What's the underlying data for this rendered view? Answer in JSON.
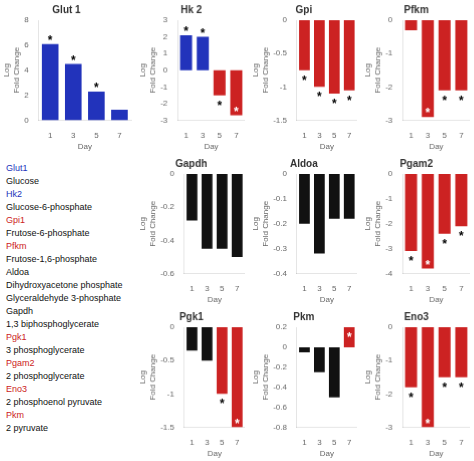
{
  "chart_data": [
    {
      "type": "bar",
      "title": "Glut 1",
      "categories": [
        "1",
        "3",
        "5",
        "7"
      ],
      "values": [
        6.1,
        4.5,
        2.3,
        0.85
      ],
      "colors": [
        "#2233bb",
        "#2233bb",
        "#2233bb",
        "#2233bb"
      ],
      "ylim": [
        0.0,
        8.0
      ],
      "yticks": [
        0.0,
        2.0,
        4.0,
        6.0,
        8.0
      ],
      "xlabel": "Day",
      "ylabel": "Log\nFold Change",
      "grid": false,
      "annotations": [
        {
          "text": "*",
          "category": "1"
        },
        {
          "text": "*",
          "category": "3"
        },
        {
          "text": "*",
          "category": "5"
        }
      ]
    },
    {
      "type": "bar",
      "title": "Hk 2",
      "categories": [
        "1",
        "3",
        "5",
        "7"
      ],
      "values": [
        2.1,
        2.0,
        -1.5,
        -2.7
      ],
      "colors": [
        "#2233bb",
        "#2233bb",
        "#cc2222",
        "#cc2222"
      ],
      "ylim": [
        -3.0,
        3.0
      ],
      "yticks": [
        -3.0,
        -2.0,
        -1.0,
        0.0,
        1.0,
        2.0,
        3.0
      ],
      "xlabel": "Day",
      "ylabel": "Log\nFold Change",
      "grid": false,
      "annotations": [
        {
          "text": "*",
          "category": "1"
        },
        {
          "text": "*",
          "category": "3"
        },
        {
          "text": "*",
          "category": "5"
        },
        {
          "text": "*",
          "category": "7"
        }
      ]
    },
    {
      "type": "bar",
      "title": "Gpi",
      "categories": [
        "1",
        "3",
        "5",
        "7"
      ],
      "values": [
        -0.75,
        -1.0,
        -1.1,
        -1.05
      ],
      "colors": [
        "#cc2222",
        "#cc2222",
        "#cc2222",
        "#cc2222"
      ],
      "ylim": [
        -1.5,
        0.0
      ],
      "yticks": [
        -1.5,
        -1.0,
        -0.5,
        0.0
      ],
      "xlabel": "Day",
      "ylabel": "Log\nFold Change",
      "grid": false,
      "annotations": [
        {
          "text": "*",
          "category": "1"
        },
        {
          "text": "*",
          "category": "3"
        },
        {
          "text": "*",
          "category": "5"
        },
        {
          "text": "*",
          "category": "7"
        }
      ]
    },
    {
      "type": "bar",
      "title": "Pfkm",
      "categories": [
        "1",
        "3",
        "5",
        "7"
      ],
      "values": [
        -0.3,
        -2.9,
        -2.1,
        -2.1
      ],
      "colors": [
        "#cc2222",
        "#cc2222",
        "#cc2222",
        "#cc2222"
      ],
      "ylim": [
        -3.0,
        0.0
      ],
      "yticks": [
        -3.0,
        -2.0,
        -1.0,
        0.0
      ],
      "xlabel": "Day",
      "ylabel": "Log\nFold Change",
      "grid": false,
      "annotations": [
        {
          "text": "*",
          "category": "3"
        },
        {
          "text": "*",
          "category": "5"
        },
        {
          "text": "*",
          "category": "7"
        }
      ]
    },
    {
      "type": "bar",
      "title": "Gapdh",
      "categories": [
        "1",
        "3",
        "5",
        "7"
      ],
      "values": [
        -0.28,
        -0.45,
        -0.45,
        -0.5
      ],
      "colors": [
        "#111111",
        "#111111",
        "#111111",
        "#111111"
      ],
      "ylim": [
        -0.6,
        0.0
      ],
      "yticks": [
        -0.6,
        -0.4,
        -0.2,
        0.0
      ],
      "xlabel": "Day",
      "ylabel": "Log\nFold Change",
      "grid": false,
      "annotations": []
    },
    {
      "type": "bar",
      "title": "Aldoa",
      "categories": [
        "1",
        "3",
        "5",
        "7"
      ],
      "values": [
        -0.2,
        -0.32,
        -0.18,
        -0.18
      ],
      "colors": [
        "#111111",
        "#111111",
        "#111111",
        "#111111"
      ],
      "ylim": [
        -0.4,
        0.0
      ],
      "yticks": [
        -0.4,
        -0.3,
        -0.2,
        -0.1,
        0.0
      ],
      "xlabel": "Day",
      "ylabel": "Log\nFold Change",
      "grid": false,
      "annotations": []
    },
    {
      "type": "bar",
      "title": "Pgam2",
      "categories": [
        "1",
        "3",
        "5",
        "7"
      ],
      "values": [
        -3.1,
        -3.8,
        -2.4,
        -2.1
      ],
      "colors": [
        "#cc2222",
        "#cc2222",
        "#cc2222",
        "#cc2222"
      ],
      "ylim": [
        -4.0,
        0.0
      ],
      "yticks": [
        -4.0,
        -3.0,
        -2.0,
        -1.0,
        0.0
      ],
      "xlabel": "Day",
      "ylabel": "Log\nFold Change",
      "grid": false,
      "annotations": [
        {
          "text": "*",
          "category": "1"
        },
        {
          "text": "*",
          "category": "3"
        },
        {
          "text": "*",
          "category": "5"
        },
        {
          "text": "*",
          "category": "7"
        }
      ]
    },
    {
      "type": "bar",
      "title": "Pgk1",
      "categories": [
        "1",
        "3",
        "5",
        "7"
      ],
      "values": [
        -0.35,
        -0.5,
        -1.0,
        -1.5
      ],
      "colors": [
        "#111111",
        "#111111",
        "#cc2222",
        "#cc2222"
      ],
      "ylim": [
        -1.5,
        0.0
      ],
      "yticks": [
        -1.5,
        -1.0,
        -0.5,
        0.0
      ],
      "xlabel": "Day",
      "ylabel": "Log\nFold Change",
      "grid": false,
      "annotations": [
        {
          "text": "*",
          "category": "5"
        },
        {
          "text": "*",
          "category": "7"
        }
      ]
    },
    {
      "type": "bar",
      "title": "Pkm",
      "categories": [
        "1",
        "3",
        "5",
        "7"
      ],
      "values": [
        -0.05,
        -0.25,
        -0.5,
        0.2
      ],
      "colors": [
        "#111111",
        "#111111",
        "#111111",
        "#cc2222"
      ],
      "ylim": [
        -0.8,
        0.2
      ],
      "yticks": [
        -0.8,
        -0.6,
        -0.4,
        -0.2,
        0.0,
        0.2
      ],
      "xlabel": "Day",
      "ylabel": "Log\nFold Change",
      "grid": false,
      "annotations": [
        {
          "text": "*",
          "category": "7"
        }
      ]
    },
    {
      "type": "bar",
      "title": "Eno3",
      "categories": [
        "1",
        "3",
        "5",
        "7"
      ],
      "values": [
        -1.8,
        -3.0,
        -1.5,
        -1.5
      ],
      "colors": [
        "#cc2222",
        "#cc2222",
        "#cc2222",
        "#cc2222"
      ],
      "ylim": [
        -3.0,
        0.0
      ],
      "yticks": [
        -3.0,
        -2.0,
        -1.0,
        0.0
      ],
      "xlabel": "Day",
      "ylabel": "Log\nFold Change",
      "grid": false,
      "annotations": [
        {
          "text": "*",
          "category": "1"
        },
        {
          "text": "*",
          "category": "3"
        },
        {
          "text": "*",
          "category": "5"
        },
        {
          "text": "*",
          "category": "7"
        }
      ]
    }
  ],
  "annotations": [
    {
      "text": "Glut1",
      "color": "#2233bb"
    },
    {
      "text": "Glucose",
      "color": "#111111"
    },
    {
      "text": "Hk2",
      "color": "#2233bb"
    },
    {
      "text": "Glucose-6-phosphate",
      "color": "#111111"
    },
    {
      "text": "Gpi1",
      "color": "#cc2222"
    },
    {
      "text": "Frutose-6-phosphate",
      "color": "#111111"
    },
    {
      "text": "Pfkm",
      "color": "#cc2222"
    },
    {
      "text": "Frutose-1,6-phosphate",
      "color": "#111111"
    },
    {
      "text": "Aldoa",
      "color": "#111111"
    },
    {
      "text": "Dihydroxyacetone phosphate",
      "color": "#111111"
    },
    {
      "text": "Glyceraldehyde 3-phosphate",
      "color": "#111111"
    },
    {
      "text": "Gapdh",
      "color": "#111111"
    },
    {
      "text": "1,3 biphosphoglycerate",
      "color": "#111111"
    },
    {
      "text": "Pgk1",
      "color": "#cc2222"
    },
    {
      "text": "3 phosphoglycerate",
      "color": "#111111"
    },
    {
      "text": "Pgam2",
      "color": "#cc2222"
    },
    {
      "text": "2 phosphoglycerate",
      "color": "#111111"
    },
    {
      "text": "Eno3",
      "color": "#cc2222"
    },
    {
      "text": "2 phosphoenol pyruvate",
      "color": "#111111"
    },
    {
      "text": "Pkm",
      "color": "#cc2222"
    },
    {
      "text": "2 pyruvate",
      "color": "#111111"
    }
  ]
}
